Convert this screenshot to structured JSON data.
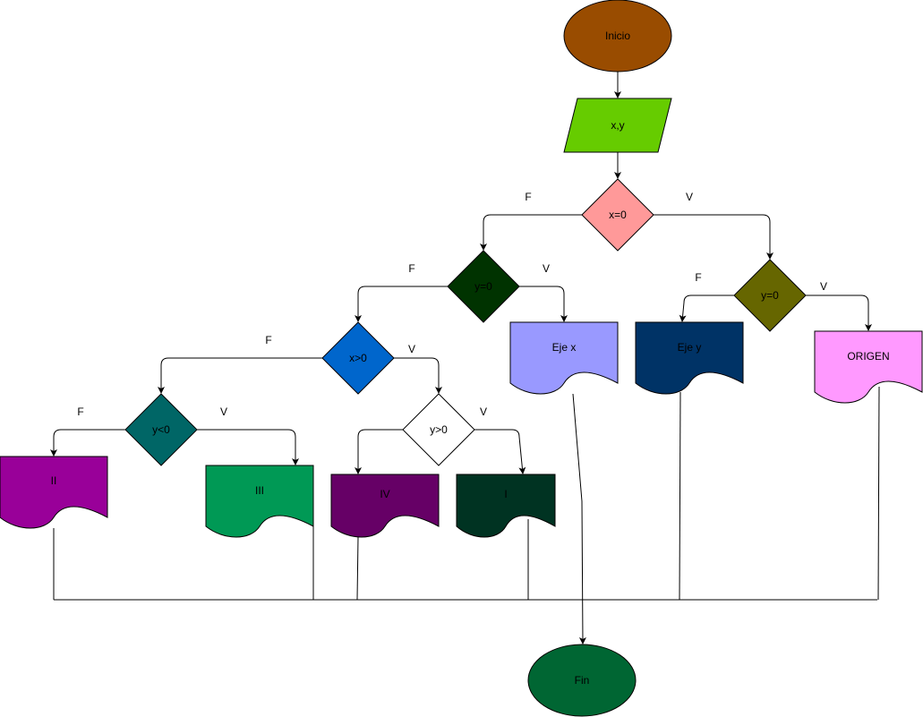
{
  "nodes": {
    "start": {
      "label": "Inicio",
      "fill": "#994c00",
      "text": "#000000"
    },
    "input": {
      "label": "x,y",
      "fill": "#66cc00",
      "text": "#000000"
    },
    "dec_x0": {
      "label": "x=0",
      "fill": "#ff9999",
      "text": "#000000"
    },
    "dec_y0_left": {
      "label": "y=0",
      "fill": "#003300",
      "text": "#000000"
    },
    "dec_y0_right": {
      "label": "y=0",
      "fill": "#666600",
      "text": "#000000"
    },
    "dec_xgt0": {
      "label": "x>0",
      "fill": "#0066cc",
      "text": "#000000"
    },
    "dec_ylt0": {
      "label": "y<0",
      "fill": "#006666",
      "text": "#000000"
    },
    "dec_ygt0": {
      "label": "y>0",
      "fill": "#ffffff",
      "text": "#000000"
    },
    "out_ejex": {
      "label": "Eje x",
      "fill": "#9999ff",
      "text": "#000000"
    },
    "out_ejey": {
      "label": "Eje y",
      "fill": "#003366",
      "text": "#000000"
    },
    "out_origen": {
      "label": "ORIGEN",
      "fill": "#ff99ff",
      "text": "#000000"
    },
    "out_II": {
      "label": "II",
      "fill": "#990099",
      "text": "#000000"
    },
    "out_III": {
      "label": "III",
      "fill": "#009955",
      "text": "#000000"
    },
    "out_IV": {
      "label": "IV",
      "fill": "#660066",
      "text": "#000000"
    },
    "out_I": {
      "label": "I",
      "fill": "#003322",
      "text": "#000000"
    },
    "end": {
      "label": "Fin",
      "fill": "#006633",
      "text": "#000000"
    }
  },
  "edge_labels": {
    "x0_false": "F",
    "x0_true": "V",
    "y0l_false": "F",
    "y0l_true": "V",
    "y0r_false": "F",
    "y0r_true": "V",
    "xgt0_false": "F",
    "xgt0_true": "V",
    "ylt0_false": "F",
    "ylt0_true": "V",
    "ygt0_true": "V"
  }
}
